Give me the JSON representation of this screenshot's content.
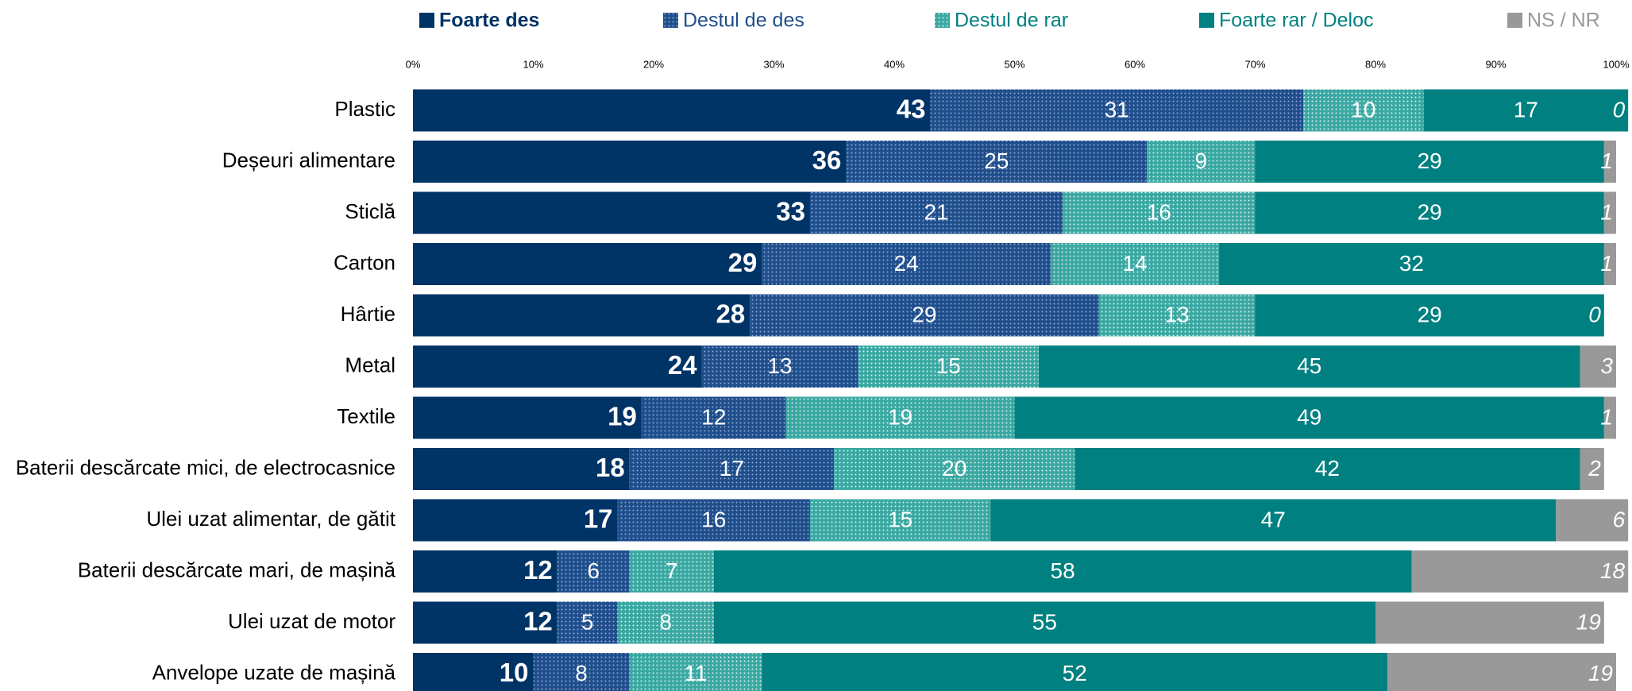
{
  "chart_data": {
    "type": "stacked-bar",
    "orientation": "horizontal",
    "categories": [
      "Plastic",
      "Deșeuri alimentare",
      "Sticlă",
      "Carton",
      "Hârtie",
      "Metal",
      "Textile",
      "Baterii descărcate mici, de electrocasnice",
      "Ulei uzat alimentar, de gătit",
      "Baterii descărcate mari, de mașină",
      "Ulei uzat de motor",
      "Anvelope uzate de mașină"
    ],
    "series": [
      {
        "name": "Foarte des",
        "color": "#003366",
        "values": [
          43,
          36,
          33,
          29,
          28,
          24,
          19,
          18,
          17,
          12,
          12,
          10
        ]
      },
      {
        "name": "Destul de des",
        "color": "#1f4e8c",
        "pattern": "dots",
        "values": [
          31,
          25,
          21,
          24,
          29,
          13,
          12,
          17,
          16,
          6,
          5,
          8
        ]
      },
      {
        "name": "Destul de rar",
        "color": "#3aa8a2",
        "pattern": "dots",
        "values": [
          10,
          9,
          16,
          14,
          13,
          15,
          19,
          20,
          15,
          7,
          8,
          11
        ]
      },
      {
        "name": "Foarte rar / Deloc",
        "color": "#008080",
        "values": [
          17,
          29,
          29,
          32,
          29,
          45,
          49,
          42,
          47,
          58,
          55,
          52
        ]
      },
      {
        "name": "NS / NR",
        "color": "#999999",
        "values": [
          0,
          1,
          1,
          1,
          0,
          3,
          1,
          2,
          6,
          18,
          19,
          19
        ]
      }
    ],
    "xlim": [
      0,
      100
    ],
    "xticks": [
      {
        "value": 0,
        "label": "0%"
      },
      {
        "value": 10,
        "label": "10%"
      },
      {
        "value": 20,
        "label": "20%"
      },
      {
        "value": 30,
        "label": "30%"
      },
      {
        "value": 40,
        "label": "40%"
      },
      {
        "value": 50,
        "label": "50%"
      },
      {
        "value": 60,
        "label": "60%"
      },
      {
        "value": 70,
        "label": "70%"
      },
      {
        "value": 80,
        "label": "80%"
      },
      {
        "value": 90,
        "label": "90%"
      },
      {
        "value": 100,
        "label": "100%"
      }
    ],
    "legend": "top"
  }
}
